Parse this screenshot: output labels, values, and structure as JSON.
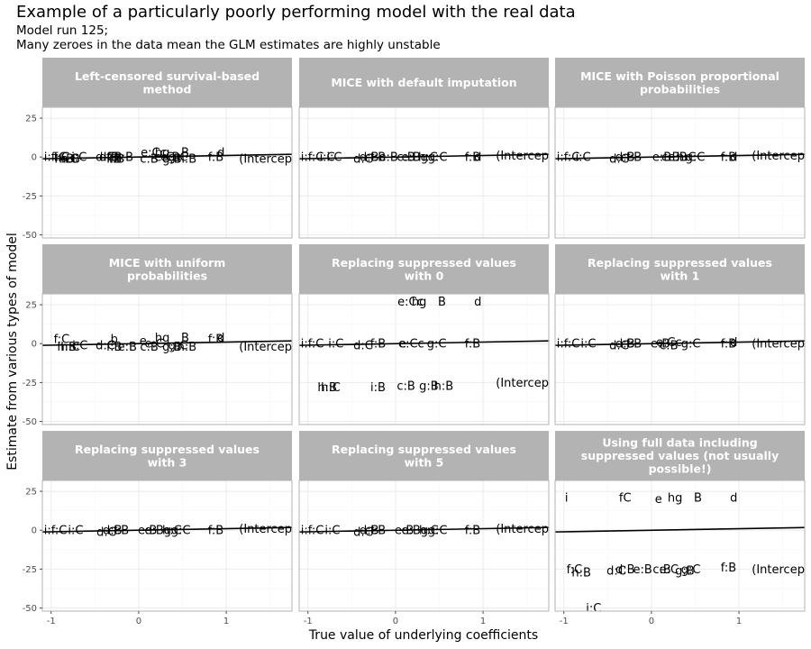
{
  "title": "Example of a particularly poorly performing model with the real data",
  "subtitle_lines": [
    "Model run 125;",
    "Many zeroes in the data mean the GLM estimates are highly unstable"
  ],
  "chart_data": {
    "type": "scatter",
    "facets": [
      {
        "title": [
          "Left-censored survival-based",
          "method"
        ],
        "points": [
          {
            "l": "i:f:C",
            "x": -0.95,
            "y": 0
          },
          {
            "l": "f:C",
            "x": -0.88,
            "y": 0
          },
          {
            "l": "i:C",
            "x": -0.68,
            "y": 0
          },
          {
            "l": "h:B",
            "x": -0.85,
            "y": -1
          },
          {
            "l": "h:C",
            "x": -0.8,
            "y": -1
          },
          {
            "l": "h:B",
            "x": -0.78,
            "y": -1
          },
          {
            "l": "d:C",
            "x": -0.38,
            "y": 0
          },
          {
            "l": "d:B",
            "x": -0.34,
            "y": 0
          },
          {
            "l": "c",
            "x": -0.3,
            "y": 0
          },
          {
            "l": "f:B",
            "x": -0.28,
            "y": 0
          },
          {
            "l": "e:B",
            "x": -0.17,
            "y": 0
          },
          {
            "l": "i:B",
            "x": -0.28,
            "y": -1
          },
          {
            "l": "i:B",
            "x": -0.25,
            "y": -1
          },
          {
            "l": "c:B",
            "x": 0.12,
            "y": -1
          },
          {
            "l": "g:B",
            "x": 0.38,
            "y": -1
          },
          {
            "l": "h:B",
            "x": 0.55,
            "y": -1
          },
          {
            "l": "e:Cc",
            "x": 0.17,
            "y": 3
          },
          {
            "l": "hg",
            "x": 0.27,
            "y": 3
          },
          {
            "l": "e:C",
            "x": 0.29,
            "y": 0
          },
          {
            "l": "e:B",
            "x": 0.36,
            "y": 0
          },
          {
            "l": "g:C",
            "x": 0.45,
            "y": 0
          },
          {
            "l": "B",
            "x": 0.53,
            "y": 3
          },
          {
            "l": "f:B",
            "x": 0.88,
            "y": 0
          },
          {
            "l": "d",
            "x": 0.94,
            "y": 3
          },
          {
            "l": "(Intercept)",
            "x": 1.5,
            "y": -1
          }
        ]
      },
      {
        "title": [
          "MICE with default imputation"
        ],
        "points": [
          {
            "l": "i:f:C",
            "x": -0.95,
            "y": 0
          },
          {
            "l": "i:C",
            "x": -0.78,
            "y": 0
          },
          {
            "l": "i:C",
            "x": -0.7,
            "y": 0
          },
          {
            "l": "d:C",
            "x": -0.37,
            "y": -1
          },
          {
            "l": "d:B",
            "x": -0.3,
            "y": 0
          },
          {
            "l": "f:B",
            "x": -0.2,
            "y": 0
          },
          {
            "l": "e:B",
            "x": -0.08,
            "y": 0
          },
          {
            "l": "c:B",
            "x": 0.12,
            "y": 0
          },
          {
            "l": "e:Bg",
            "x": 0.22,
            "y": 0
          },
          {
            "l": "h:C",
            "x": 0.37,
            "y": 0
          },
          {
            "l": "g:C",
            "x": 0.48,
            "y": 0
          },
          {
            "l": "f:B",
            "x": 0.88,
            "y": 0
          },
          {
            "l": "d",
            "x": 0.94,
            "y": 0
          },
          {
            "l": "(Intercept)",
            "x": 1.5,
            "y": 1
          }
        ]
      },
      {
        "title": [
          "MICE with Poisson proportional",
          "probabilities"
        ],
        "points": [
          {
            "l": "i:f:C",
            "x": -0.95,
            "y": 0
          },
          {
            "l": "i:C",
            "x": -0.78,
            "y": 0
          },
          {
            "l": "d:C",
            "x": -0.37,
            "y": -1
          },
          {
            "l": "d:B",
            "x": -0.3,
            "y": 0
          },
          {
            "l": "f:B",
            "x": -0.2,
            "y": 0
          },
          {
            "l": "e:B",
            "x": 0.12,
            "y": 0
          },
          {
            "l": "c:B",
            "x": 0.22,
            "y": 0
          },
          {
            "l": "e:B",
            "x": 0.3,
            "y": 0
          },
          {
            "l": "h:C",
            "x": 0.4,
            "y": 0
          },
          {
            "l": "g:C",
            "x": 0.5,
            "y": 0
          },
          {
            "l": "f:B",
            "x": 0.88,
            "y": 0
          },
          {
            "l": "d",
            "x": 0.94,
            "y": 0
          },
          {
            "l": "(Intercept)",
            "x": 1.5,
            "y": 1
          }
        ]
      },
      {
        "title": [
          "MICE with uniform",
          "probabilities"
        ],
        "points": [
          {
            "l": "f:C",
            "x": -0.88,
            "y": 3
          },
          {
            "l": "h:B",
            "x": -0.82,
            "y": -2
          },
          {
            "l": "h:C",
            "x": -0.78,
            "y": -2
          },
          {
            "l": "i:C",
            "x": -0.67,
            "y": -1
          },
          {
            "l": "d:C",
            "x": -0.38,
            "y": -1
          },
          {
            "l": "b",
            "x": -0.28,
            "y": 3
          },
          {
            "l": "f:B",
            "x": -0.28,
            "y": -2
          },
          {
            "l": "e:B",
            "x": -0.13,
            "y": -2
          },
          {
            "l": "e",
            "x": 0.05,
            "y": 2
          },
          {
            "l": "c:B",
            "x": 0.12,
            "y": -2
          },
          {
            "l": "e:C",
            "x": 0.18,
            "y": 0
          },
          {
            "l": "hg",
            "x": 0.27,
            "y": 4
          },
          {
            "l": "g:B",
            "x": 0.38,
            "y": -2
          },
          {
            "l": "h:B",
            "x": 0.55,
            "y": -2
          },
          {
            "l": "g:C",
            "x": 0.45,
            "y": -1
          },
          {
            "l": "B",
            "x": 0.53,
            "y": 4
          },
          {
            "l": "f:B",
            "x": 0.88,
            "y": 3
          },
          {
            "l": "d",
            "x": 0.94,
            "y": 4
          },
          {
            "l": "(Intercept)",
            "x": 1.5,
            "y": -2
          }
        ]
      },
      {
        "title": [
          "Replacing suppressed values",
          "with 0"
        ],
        "points": [
          {
            "l": "i:f:C",
            "x": -0.95,
            "y": 0
          },
          {
            "l": "i:C",
            "x": -0.68,
            "y": 0
          },
          {
            "l": "d:C",
            "x": -0.37,
            "y": -1
          },
          {
            "l": "f:B",
            "x": -0.2,
            "y": 0
          },
          {
            "l": "e",
            "x": 0.08,
            "y": 0
          },
          {
            "l": "e:Cc",
            "x": 0.18,
            "y": 0
          },
          {
            "l": "g:C",
            "x": 0.47,
            "y": 0
          },
          {
            "l": "f:B",
            "x": 0.88,
            "y": 0
          },
          {
            "l": "e:Cc",
            "x": 0.17,
            "y": 27
          },
          {
            "l": "hg",
            "x": 0.27,
            "y": 27
          },
          {
            "l": "B",
            "x": 0.53,
            "y": 27
          },
          {
            "l": "d",
            "x": 0.94,
            "y": 27
          },
          {
            "l": "h:B",
            "x": -0.78,
            "y": -28
          },
          {
            "l": "h:C",
            "x": -0.74,
            "y": -28
          },
          {
            "l": "i:B",
            "x": -0.2,
            "y": -28
          },
          {
            "l": "c:B",
            "x": 0.12,
            "y": -27
          },
          {
            "l": "g:B",
            "x": 0.38,
            "y": -27
          },
          {
            "l": "h:B",
            "x": 0.55,
            "y": -27
          },
          {
            "l": "(Intercept)",
            "x": 1.5,
            "y": -25
          }
        ]
      },
      {
        "title": [
          "Replacing suppressed values",
          "with 1"
        ],
        "points": [
          {
            "l": "i:f:C",
            "x": -0.95,
            "y": 0
          },
          {
            "l": "i:C",
            "x": -0.72,
            "y": 0
          },
          {
            "l": "d:C",
            "x": -0.37,
            "y": -1
          },
          {
            "l": "d:B",
            "x": -0.3,
            "y": 0
          },
          {
            "l": "f:B",
            "x": -0.2,
            "y": 0
          },
          {
            "l": "e:B",
            "x": 0.1,
            "y": 0
          },
          {
            "l": "e:Cc",
            "x": 0.2,
            "y": 1
          },
          {
            "l": "c:B",
            "x": 0.2,
            "y": -1
          },
          {
            "l": "g:C",
            "x": 0.45,
            "y": 0
          },
          {
            "l": "f:B",
            "x": 0.88,
            "y": 0
          },
          {
            "l": "d",
            "x": 0.94,
            "y": 1
          },
          {
            "l": "(Intercept)",
            "x": 1.5,
            "y": 0
          }
        ]
      },
      {
        "title": [
          "Replacing suppressed values",
          "with 3"
        ],
        "points": [
          {
            "l": "i:f:C",
            "x": -0.95,
            "y": 0
          },
          {
            "l": "i:C",
            "x": -0.72,
            "y": 0
          },
          {
            "l": "d:C",
            "x": -0.37,
            "y": -1
          },
          {
            "l": "d:B",
            "x": -0.3,
            "y": 0
          },
          {
            "l": "f:B",
            "x": -0.2,
            "y": 0
          },
          {
            "l": "e:B",
            "x": 0.1,
            "y": 0
          },
          {
            "l": "e:Bg",
            "x": 0.22,
            "y": 0
          },
          {
            "l": "h:C",
            "x": 0.38,
            "y": 0
          },
          {
            "l": "g:C",
            "x": 0.48,
            "y": 0
          },
          {
            "l": "f:B",
            "x": 0.88,
            "y": 0
          },
          {
            "l": "(Intercept)",
            "x": 1.5,
            "y": 1
          }
        ]
      },
      {
        "title": [
          "Replacing suppressed values",
          "with 5"
        ],
        "points": [
          {
            "l": "i:f:C",
            "x": -0.95,
            "y": 0
          },
          {
            "l": "i:C",
            "x": -0.72,
            "y": 0
          },
          {
            "l": "d:C",
            "x": -0.37,
            "y": -1
          },
          {
            "l": "d:B",
            "x": -0.3,
            "y": 0
          },
          {
            "l": "f:B",
            "x": -0.2,
            "y": 0
          },
          {
            "l": "e:B",
            "x": 0.1,
            "y": 0
          },
          {
            "l": "e:Bg",
            "x": 0.22,
            "y": 0
          },
          {
            "l": "h:C",
            "x": 0.38,
            "y": 0
          },
          {
            "l": "g:C",
            "x": 0.48,
            "y": 0
          },
          {
            "l": "f:B",
            "x": 0.88,
            "y": 0
          },
          {
            "l": "(Intercept)",
            "x": 1.5,
            "y": 1
          }
        ]
      },
      {
        "title": [
          "Using full data including",
          "suppressed values (not usually",
          "possible!)"
        ],
        "points": [
          {
            "l": "i",
            "x": -0.97,
            "y": 21
          },
          {
            "l": "fC",
            "x": -0.3,
            "y": 21
          },
          {
            "l": "e",
            "x": 0.08,
            "y": 20
          },
          {
            "l": "hg",
            "x": 0.27,
            "y": 21
          },
          {
            "l": "B",
            "x": 0.53,
            "y": 21
          },
          {
            "l": "d",
            "x": 0.94,
            "y": 21
          },
          {
            "l": "f:C",
            "x": -0.88,
            "y": -25
          },
          {
            "l": "h:B",
            "x": -0.8,
            "y": -27
          },
          {
            "l": "d:C",
            "x": -0.4,
            "y": -26
          },
          {
            "l": "d:B",
            "x": -0.3,
            "y": -25
          },
          {
            "l": "e:B",
            "x": -0.1,
            "y": -25
          },
          {
            "l": "c:B",
            "x": 0.12,
            "y": -25
          },
          {
            "l": "e:C",
            "x": 0.2,
            "y": -25
          },
          {
            "l": "g:B",
            "x": 0.38,
            "y": -26
          },
          {
            "l": "g:C",
            "x": 0.45,
            "y": -25
          },
          {
            "l": "f:B",
            "x": 0.88,
            "y": -24
          },
          {
            "l": "i:C",
            "x": -0.66,
            "y": -50
          },
          {
            "l": "(Intercept)",
            "x": 1.5,
            "y": -25
          }
        ]
      }
    ],
    "line": {
      "slope": 1,
      "intercept": 0
    },
    "xlim": [
      -1.1,
      1.75
    ],
    "ylim": [
      -52,
      32
    ],
    "x_ticks": [
      -1,
      0,
      1
    ],
    "y_ticks": [
      25,
      0,
      -25,
      -50
    ],
    "xlabel": "True value of underlying coefficients",
    "ylabel": "Estimate from various types of model",
    "grid": true,
    "colors": {
      "strip_bg": "#b3b3b3",
      "strip_text": "#ffffff",
      "panel_bg": "#ffffff",
      "grid_major": "#ebebeb",
      "grid_minor": "#f5f5f5",
      "border": "#b3b3b3",
      "line": "#000000",
      "tick_text": "#4d4d4d"
    }
  }
}
